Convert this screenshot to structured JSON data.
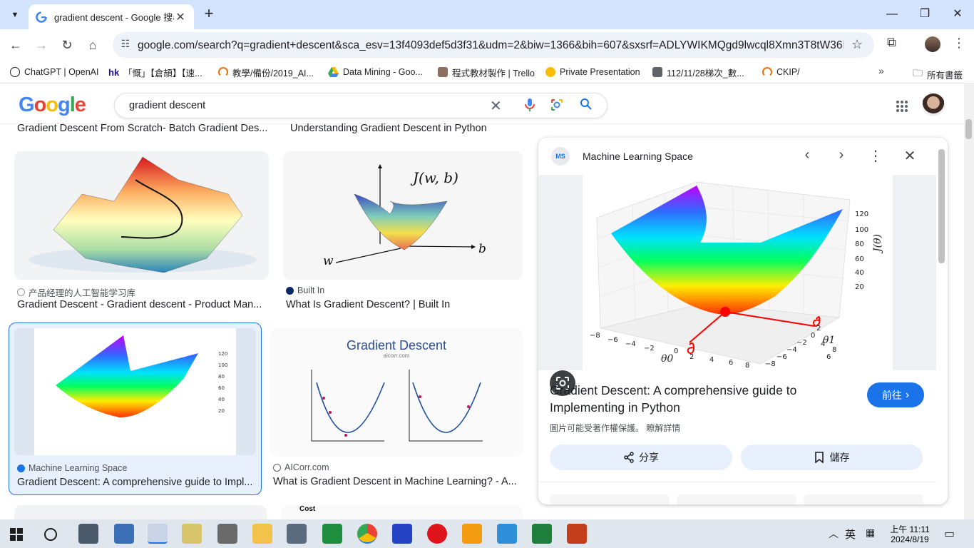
{
  "browser": {
    "tab_title": "gradient descent - Google 搜尋",
    "url": "google.com/search?q=gradient+descent&sca_esv=13f4093def5d3f31&udm=2&biw=1366&bih=607&sxsrf=ADLYWIKMQgd9lwcql8Xmn3T8tW36D..."
  },
  "bookmarks": [
    {
      "label": "ChatGPT | OpenAI",
      "color": "#202124"
    },
    {
      "label": "「慨」【倉頡】【速...",
      "prefix": "hk",
      "color": "#1a0dab"
    },
    {
      "label": "教學/備份/2019_AI...",
      "color": "#e8710a"
    },
    {
      "label": "Data Mining - Goo...",
      "color": "#34a853"
    },
    {
      "label": "程式教材製作 | Trello",
      "color": "#8d6e63"
    },
    {
      "label": "Private Presentation",
      "color": "#e37400"
    },
    {
      "label": "112/11/28梯次_數...",
      "color": "#5f6368"
    },
    {
      "label": "CKIP/",
      "color": "#e8710a"
    }
  ],
  "bookmarks_all": "所有書籤",
  "search": {
    "query": "gradient descent",
    "logo": "Google"
  },
  "results": {
    "top_captions": [
      "Gradient Descent From Scratch- Batch Gradient Des...",
      "Understanding Gradient Descent in Python"
    ],
    "items": [
      {
        "source": "产品经理的人工智能学习库",
        "title": "Gradient Descent - Gradient descent - Product Man..."
      },
      {
        "source": "Built In",
        "title": "What Is Gradient Descent? | Built In"
      },
      {
        "source": "Machine Learning Space",
        "title": "Gradient Descent: A comprehensive guide to Impl..."
      },
      {
        "source": "AICorr.com",
        "title": "What is Gradient Descent in Machine Learning? - A..."
      }
    ],
    "builtin_label": "J(w, b)",
    "builtin_axis_w": "w",
    "builtin_axis_b": "b",
    "aicorr_title": "Gradient Descent",
    "aicorr_site": "aicorr.com",
    "bottom_peek": "Cost"
  },
  "panel": {
    "source": "Machine Learning Space",
    "title": "Gradient Descent: A comprehensive guide to Implementing in Python",
    "visit_label": "前往",
    "copyright": "圖片可能受著作權保護。 瞭解詳情",
    "share_label": "分享",
    "save_label": "儲存",
    "z_ticks": [
      "120",
      "100",
      "80",
      "60",
      "40",
      "20"
    ],
    "x_ticks": [
      "−8",
      "−6",
      "−4",
      "−2",
      "0",
      "2",
      "4",
      "6",
      "8"
    ],
    "y_ticks": [
      "8",
      "6",
      "4",
      "2",
      "0",
      "−2",
      "−4",
      "−6",
      "−8"
    ],
    "z_label": "J(θ)",
    "x_label": "θ0",
    "y_label": "θ1"
  },
  "taskbar": {
    "ime": "英",
    "time": "上午 11:11",
    "date": "2024/8/19"
  }
}
